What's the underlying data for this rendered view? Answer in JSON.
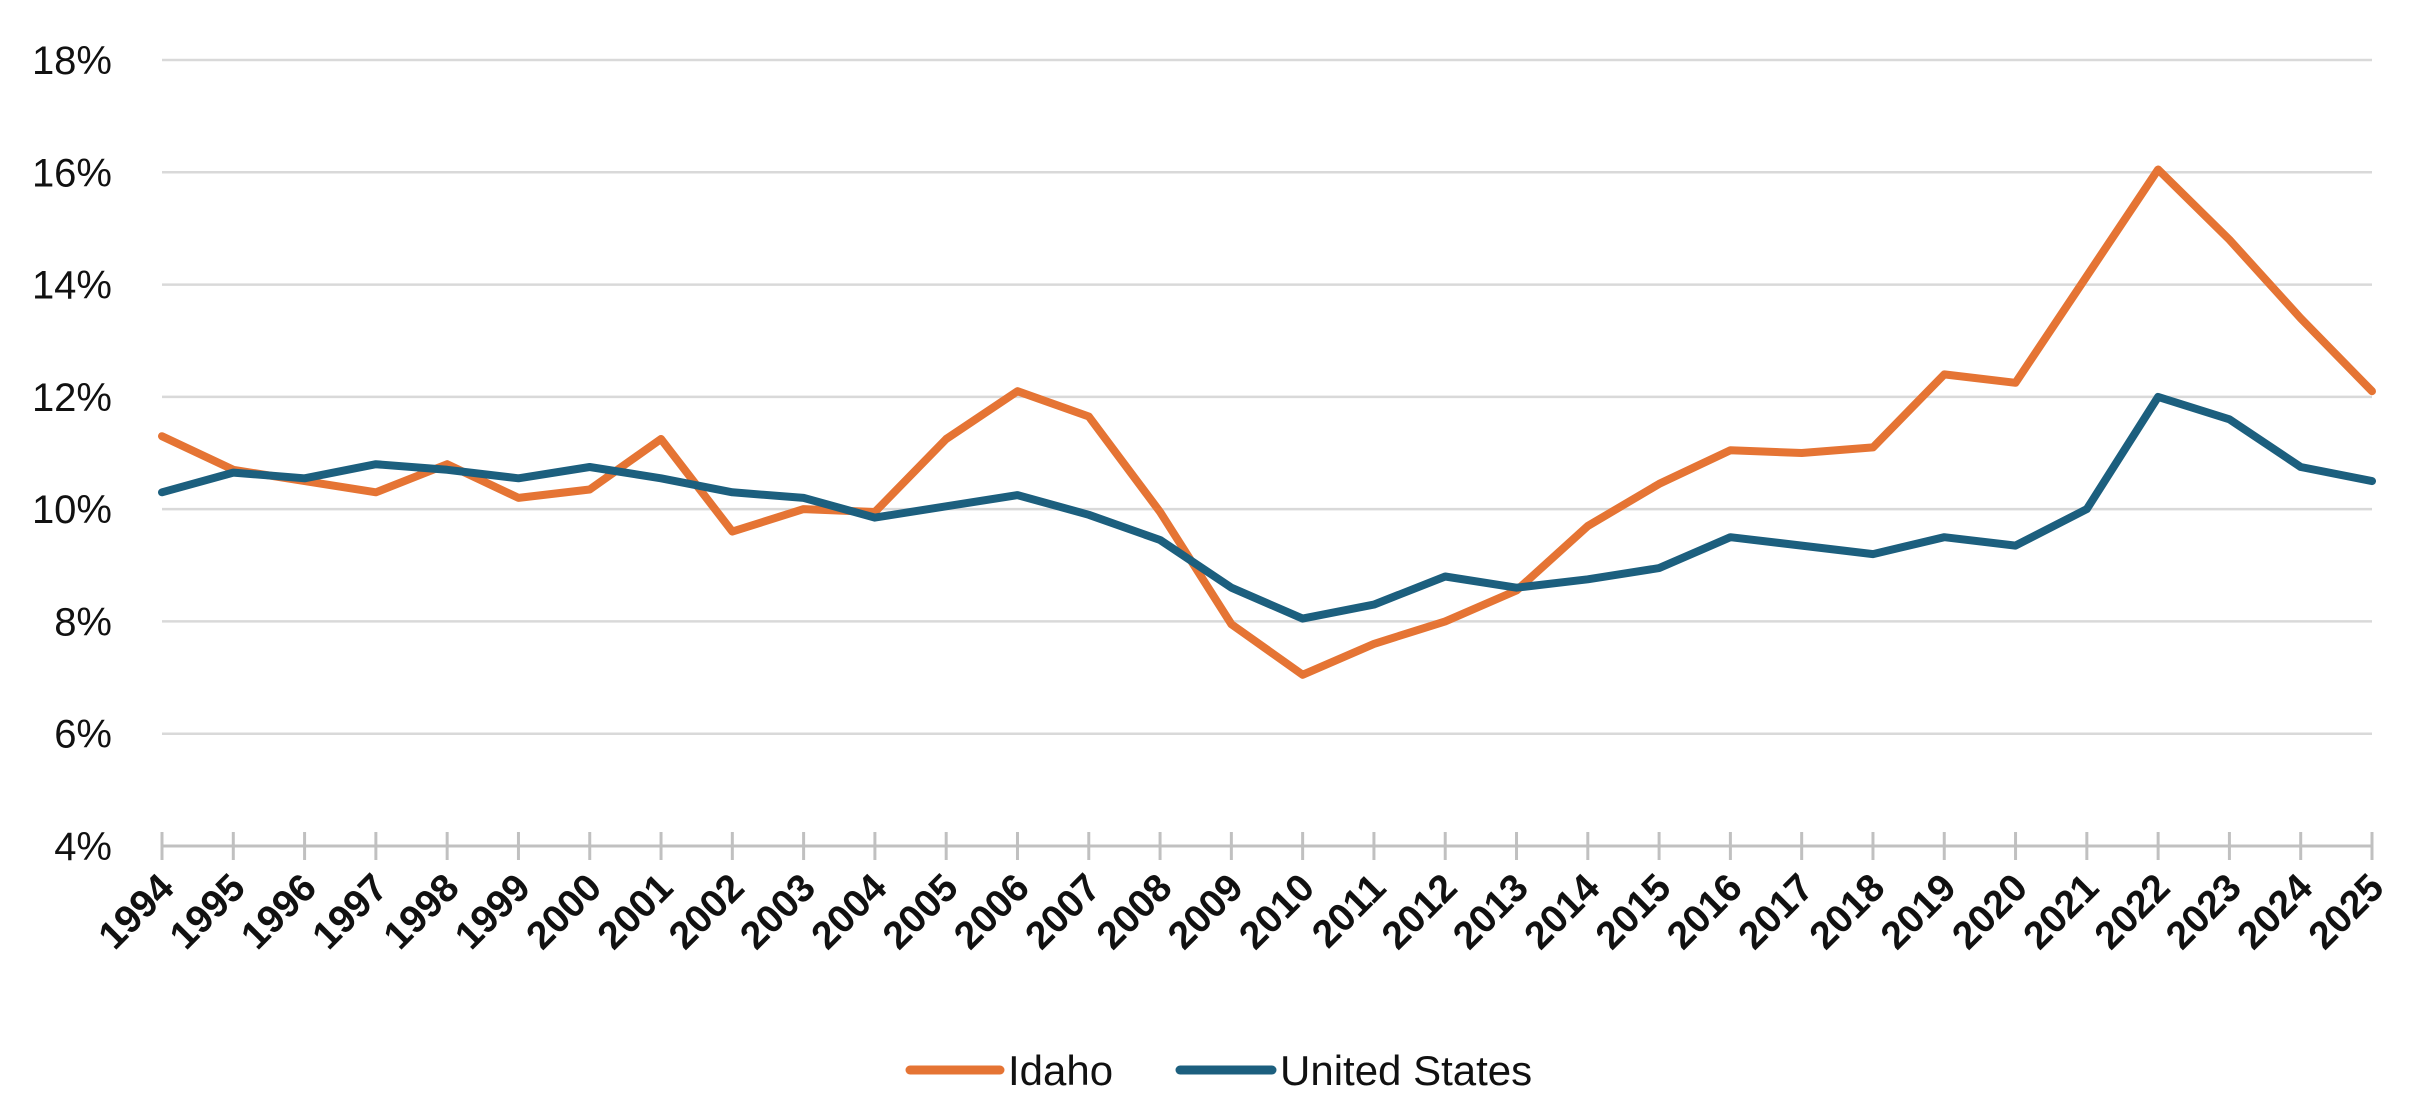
{
  "chart_data": {
    "type": "line",
    "x": [
      "1994",
      "1995",
      "1996",
      "1997",
      "1998",
      "1999",
      "2000",
      "2001",
      "2002",
      "2003",
      "2004",
      "2005",
      "2006",
      "2007",
      "2008",
      "2009",
      "2010",
      "2011",
      "2012",
      "2013",
      "2014",
      "2015",
      "2016",
      "2017",
      "2018",
      "2019",
      "2020",
      "2021",
      "2022",
      "2023",
      "2024",
      "2025"
    ],
    "series": [
      {
        "name": "Idaho",
        "color": "#e57434",
        "values": [
          11.3,
          10.7,
          10.5,
          10.3,
          10.8,
          10.2,
          10.35,
          11.25,
          9.6,
          10.0,
          9.95,
          11.25,
          12.1,
          11.65,
          9.95,
          7.95,
          7.05,
          7.6,
          8.0,
          8.55,
          9.7,
          10.45,
          11.05,
          11.0,
          11.1,
          12.4,
          12.25,
          14.15,
          16.05,
          14.8,
          13.4,
          12.1
        ]
      },
      {
        "name": "United States",
        "color": "#1c5f7e",
        "values": [
          10.3,
          10.65,
          10.55,
          10.8,
          10.7,
          10.55,
          10.75,
          10.55,
          10.3,
          10.2,
          9.85,
          10.05,
          10.25,
          9.9,
          9.45,
          8.6,
          8.05,
          8.3,
          8.8,
          8.6,
          8.75,
          8.95,
          9.5,
          9.35,
          9.2,
          9.5,
          9.35,
          10.0,
          12.0,
          11.6,
          10.75,
          10.5
        ]
      }
    ],
    "y_ticks": [
      "4%",
      "6%",
      "8%",
      "10%",
      "12%",
      "14%",
      "16%",
      "18%"
    ],
    "ylim": [
      4,
      18
    ],
    "grid": true,
    "legend_position": "bottom-center"
  }
}
